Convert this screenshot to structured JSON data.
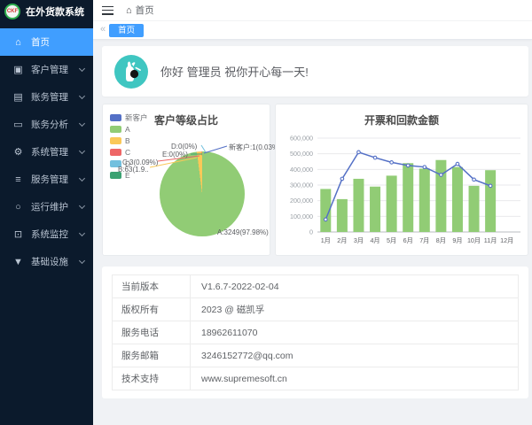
{
  "app": {
    "logo_text": "CKF",
    "title": "在外货款系统"
  },
  "colors": {
    "accent": "#409eff",
    "sidebar_bg": "#0b1a2c",
    "avatar_bg": "#3fc6c1",
    "palette": [
      "#5470c6",
      "#91cc75",
      "#fac858",
      "#ee6666",
      "#73c0de",
      "#3ba272"
    ]
  },
  "sidebar": {
    "items": [
      {
        "label": "首页",
        "icon": "home",
        "active": true,
        "chevron": false
      },
      {
        "label": "客户管理",
        "icon": "user-card",
        "active": false,
        "chevron": true
      },
      {
        "label": "账务管理",
        "icon": "document",
        "active": false,
        "chevron": true
      },
      {
        "label": "账务分析",
        "icon": "monitor",
        "active": false,
        "chevron": true
      },
      {
        "label": "系统管理",
        "icon": "gear",
        "active": false,
        "chevron": true
      },
      {
        "label": "服务管理",
        "icon": "server",
        "active": false,
        "chevron": true
      },
      {
        "label": "运行维护",
        "icon": "operation",
        "active": false,
        "chevron": true
      },
      {
        "label": "系统监控",
        "icon": "display",
        "active": false,
        "chevron": true
      },
      {
        "label": "基础设施",
        "icon": "funnel",
        "active": false,
        "chevron": true
      }
    ]
  },
  "topbar": {
    "breadcrumb": "首页"
  },
  "tabs": {
    "back_arrow": "«",
    "items": [
      {
        "label": "首页",
        "active": true
      }
    ]
  },
  "greeting": {
    "text": "你好 管理员 祝你开心每一天!"
  },
  "chart_data": [
    {
      "type": "pie",
      "title": "客户等级占比",
      "legend_position": "top-left",
      "series": [
        {
          "name": "新客户",
          "value": 1,
          "pct": 0.03
        },
        {
          "name": "A",
          "value": 3249,
          "pct": 97.98
        },
        {
          "name": "B",
          "value": 63,
          "pct": 1.9
        },
        {
          "name": "C",
          "value": 3,
          "pct": 0.09
        },
        {
          "name": "D",
          "value": 0,
          "pct": 0
        },
        {
          "name": "E",
          "value": 0,
          "pct": 0
        }
      ],
      "callouts": {
        "new": "新客户:1(0.03%)",
        "a": "A:3249(97.98%)",
        "b": "B:63(1.9..",
        "c": "C:3(0.09%)",
        "d": "D:0(0%)",
        "e": "E:0(0%)"
      }
    },
    {
      "type": "bar+line",
      "title": "开票和回款金额",
      "categories": [
        "1月",
        "2月",
        "3月",
        "4月",
        "5月",
        "6月",
        "7月",
        "8月",
        "9月",
        "10月",
        "11月",
        "12月"
      ],
      "series": [
        {
          "type": "bar",
          "color": "#91cc75",
          "values": [
            275000,
            210000,
            340000,
            290000,
            360000,
            440000,
            405000,
            460000,
            415000,
            295000,
            395000,
            null
          ]
        },
        {
          "type": "line",
          "color": "#5470c6",
          "values": [
            80000,
            340000,
            510000,
            475000,
            445000,
            425000,
            415000,
            365000,
            435000,
            335000,
            295000,
            null
          ]
        }
      ],
      "ylim": [
        0,
        600000
      ],
      "ytick_labels": [
        "0",
        "100,000",
        "200,000",
        "300,000",
        "400,000",
        "500,000",
        "600,000"
      ],
      "grid": true,
      "legend_position": "none"
    }
  ],
  "info_table": {
    "rows": [
      {
        "label": "当前版本",
        "value": "V1.6.7-2022-02-04"
      },
      {
        "label": "版权所有",
        "value": "2023 @ 磁凯孚"
      },
      {
        "label": "服务电话",
        "value": "18962611070"
      },
      {
        "label": "服务邮箱",
        "value": "3246152772@qq.com"
      },
      {
        "label": "技术支持",
        "value": "www.supremesoft.cn"
      }
    ]
  }
}
